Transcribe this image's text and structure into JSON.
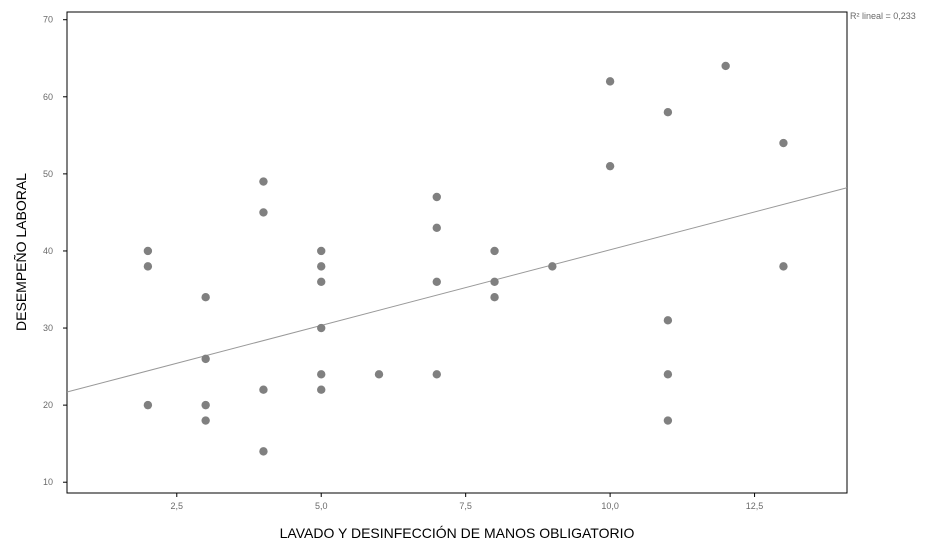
{
  "chart_data": {
    "type": "scatter",
    "xlabel": "LAVADO Y DESINFECCIÓN DE MANOS OBLIGATORIO",
    "ylabel": "DESEMPEÑO LABORAL",
    "xlim": [
      0.6,
      14.1
    ],
    "ylim": [
      8.6,
      71.0
    ],
    "xticks": [
      2.5,
      5.0,
      7.5,
      10.0,
      12.5
    ],
    "xtick_labels": [
      "2,5",
      "5,0",
      "7,5",
      "10,0",
      "12,5"
    ],
    "yticks": [
      10,
      20,
      30,
      40,
      50,
      60,
      70
    ],
    "ytick_labels": [
      "10",
      "20",
      "30",
      "40",
      "50",
      "60",
      "70"
    ],
    "grid": false,
    "r2_label": "R² lineal = 0,233",
    "fit_line": {
      "x": [
        0.6,
        14.1
      ],
      "y": [
        21.7,
        48.2
      ]
    },
    "series": [
      {
        "marker_color": "#808080",
        "line_color": "#999999",
        "points": [
          [
            2,
            40
          ],
          [
            2,
            38
          ],
          [
            2,
            20
          ],
          [
            3,
            34
          ],
          [
            3,
            26
          ],
          [
            3,
            20
          ],
          [
            3,
            18
          ],
          [
            4,
            49
          ],
          [
            4,
            45
          ],
          [
            4,
            22
          ],
          [
            4,
            14
          ],
          [
            5,
            40
          ],
          [
            5,
            38
          ],
          [
            5,
            36
          ],
          [
            5,
            30
          ],
          [
            5,
            24
          ],
          [
            5,
            22
          ],
          [
            6,
            24
          ],
          [
            7,
            47
          ],
          [
            7,
            43
          ],
          [
            7,
            36
          ],
          [
            7,
            24
          ],
          [
            8,
            40
          ],
          [
            8,
            36
          ],
          [
            8,
            34
          ],
          [
            9,
            38
          ],
          [
            10,
            62
          ],
          [
            10,
            51
          ],
          [
            11,
            58
          ],
          [
            11,
            31
          ],
          [
            11,
            24
          ],
          [
            11,
            18
          ],
          [
            12,
            64
          ],
          [
            13,
            54
          ],
          [
            13,
            38
          ]
        ]
      }
    ]
  }
}
